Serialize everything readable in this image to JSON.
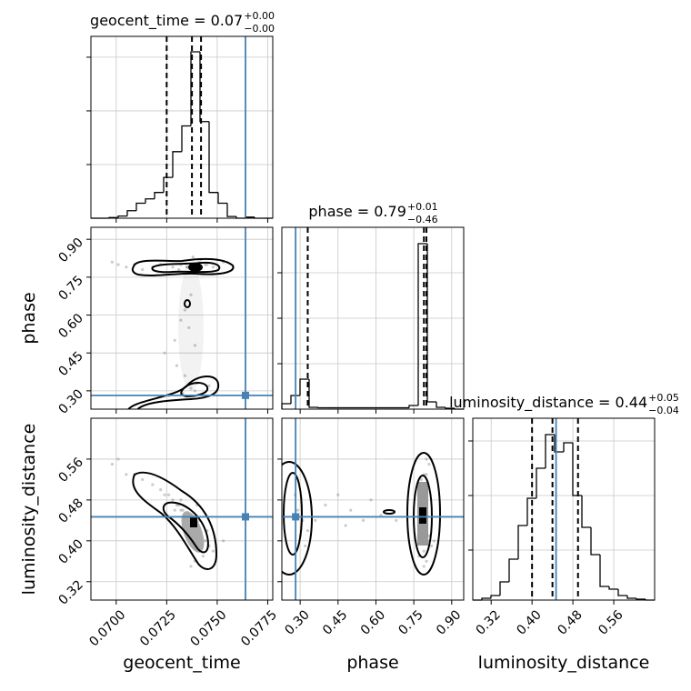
{
  "chart_data": {
    "type": "corner",
    "truth_color": "#4682b4",
    "hist_color": "#000000",
    "point_color": "#8c8c8c",
    "grid": true,
    "parameters": [
      {
        "name": "geocent_time",
        "title": "geocent_time = 0.07",
        "title_plus": "+0.00",
        "title_minus": "−0.00",
        "lim": [
          0.06875,
          0.07775
        ],
        "ticks": [
          {
            "value": 0.07,
            "label": "0.0700"
          },
          0.0725,
          {
            "value": 0.075,
            "label": "0.0750"
          },
          0.0775
        ],
        "truth": 0.0764,
        "quantiles": [
          0.0725,
          0.07375,
          0.0742
        ],
        "bins": [
          0.06875,
          0.0692,
          0.06965,
          0.0701,
          0.07055,
          0.071,
          0.07145,
          0.0719,
          0.07235,
          0.0728,
          0.07325,
          0.0737,
          0.07415,
          0.0746,
          0.07505,
          0.0755,
          0.07595,
          0.0764,
          0.07685,
          0.0773,
          0.07775
        ],
        "counts": [
          0,
          0,
          3,
          10,
          35,
          70,
          90,
          120,
          190,
          310,
          430,
          775,
          450,
          120,
          70,
          8,
          0,
          5,
          0,
          0
        ],
        "hist_ylim": [
          0,
          847
        ],
        "hist_yticks": [
          250,
          500,
          750
        ],
        "samples": [
          0.0738,
          0.0735,
          0.0741,
          0.0731,
          0.0744,
          0.0737,
          0.0733,
          0.074,
          0.0728,
          0.0722,
          0.0713,
          0.0705,
          0.0698,
          0.0748,
          0.0742,
          0.0736,
          0.0739,
          0.0734,
          0.073,
          0.0737,
          0.0743,
          0.0732,
          0.0739,
          0.0726,
          0.0745,
          0.0737,
          0.074,
          0.0718,
          0.0709,
          0.0734,
          0.0738,
          0.0741,
          0.0729,
          0.0746,
          0.0735,
          0.0724,
          0.0739,
          0.0732,
          0.0701,
          0.0753
        ]
      },
      {
        "name": "phase",
        "title": "phase = 0.79",
        "title_plus": "+0.01",
        "title_minus": "−0.46",
        "lim": [
          0.2275,
          0.9475
        ],
        "ticks": [
          {
            "value": 0.3,
            "label": "0.30"
          },
          0.45,
          {
            "value": 0.6,
            "label": "0.60"
          },
          0.75,
          {
            "value": 0.9,
            "label": "0.90"
          }
        ],
        "truth": 0.282,
        "quantiles": [
          0.33,
          0.79,
          0.8
        ],
        "bins": [
          0.2275,
          0.2635,
          0.2995,
          0.3355,
          0.3715,
          0.4075,
          0.4435,
          0.4795,
          0.5155,
          0.5515,
          0.5875,
          0.6235,
          0.6595,
          0.6955,
          0.7315,
          0.7675,
          0.8035,
          0.8395,
          0.8755,
          0.9115,
          0.9475
        ],
        "counts": [
          60,
          150,
          330,
          20,
          15,
          15,
          15,
          15,
          15,
          15,
          15,
          15,
          15,
          15,
          40,
          1820,
          80,
          20,
          10,
          0
        ],
        "hist_ylim": [
          0,
          2000
        ],
        "hist_yticks": [
          500,
          1000,
          1500
        ],
        "samples": [
          0.8,
          0.79,
          0.81,
          0.78,
          0.8,
          0.31,
          0.29,
          0.33,
          0.79,
          0.8,
          0.78,
          0.79,
          0.81,
          0.79,
          0.82,
          0.55,
          0.48,
          0.62,
          0.4,
          0.68,
          0.77,
          0.8,
          0.3,
          0.28,
          0.8,
          0.79,
          0.8,
          0.79,
          0.8,
          0.36,
          0.83,
          0.78,
          0.5,
          0.32,
          0.79,
          0.45,
          0.8,
          0.58,
          0.8,
          0.81
        ]
      },
      {
        "name": "luminosity_distance",
        "title": "luminosity_distance = 0.44",
        "title_plus": "+0.05",
        "title_minus": "−0.04",
        "lim": [
          0.284,
          0.64
        ],
        "ticks": [
          0.32,
          {
            "value": 0.4,
            "label": "0.40"
          },
          0.48,
          0.56
        ],
        "truth": 0.447,
        "quantiles": [
          0.4,
          0.44,
          0.49
        ],
        "bins": [
          0.284,
          0.3018,
          0.3196,
          0.3374,
          0.3552,
          0.373,
          0.3908,
          0.4086,
          0.4264,
          0.4442,
          0.462,
          0.4798,
          0.4976,
          0.5154,
          0.5332,
          0.551,
          0.5688,
          0.5866,
          0.6044,
          0.6222,
          0.64
        ],
        "counts": [
          0,
          10,
          25,
          100,
          225,
          410,
          560,
          725,
          910,
          815,
          865,
          575,
          400,
          250,
          75,
          60,
          25,
          10,
          5,
          0
        ],
        "hist_ylim": [
          0,
          1000
        ],
        "hist_yticks": [
          275,
          575,
          875
        ],
        "samples": [
          0.43,
          0.45,
          0.41,
          0.47,
          0.4,
          0.44,
          0.46,
          0.42,
          0.48,
          0.5,
          0.52,
          0.53,
          0.55,
          0.38,
          0.39,
          0.44,
          0.43,
          0.45,
          0.47,
          0.44,
          0.37,
          0.46,
          0.41,
          0.49,
          0.42,
          0.35,
          0.47,
          0.51,
          0.53,
          0.44,
          0.4,
          0.44,
          0.46,
          0.39,
          0.42,
          0.49,
          0.36,
          0.48,
          0.56,
          0.4
        ]
      }
    ]
  }
}
